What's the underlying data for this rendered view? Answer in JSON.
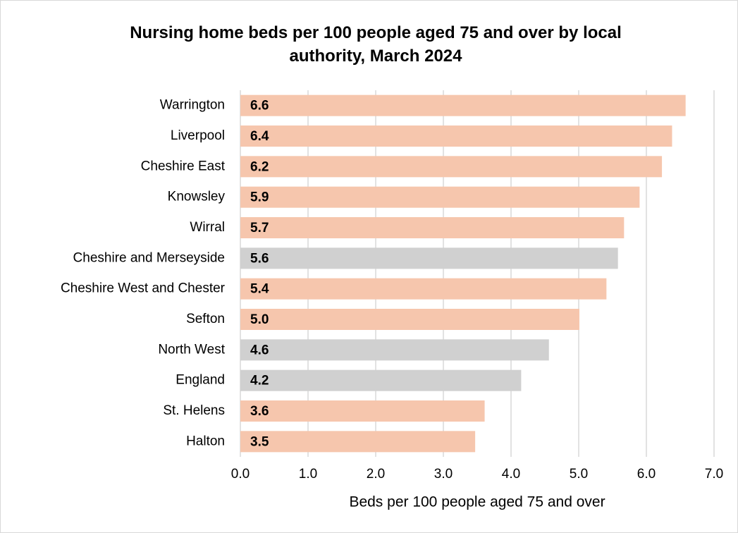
{
  "chart_data": {
    "type": "barh",
    "title": "Nursing home beds per 100 people aged 75 and over by local authority, March 2024",
    "xlabel": "Beds per 100 people aged 75 and over",
    "categories": [
      "Warrington",
      "Liverpool",
      "Cheshire East",
      "Knowsley",
      "Wirral",
      "Cheshire and Merseyside",
      "Cheshire West and Chester",
      "Sefton",
      "North West",
      "England",
      "St. Helens",
      "Halton"
    ],
    "values": [
      6.58,
      6.38,
      6.23,
      5.9,
      5.67,
      5.58,
      5.41,
      5.01,
      4.56,
      4.15,
      3.61,
      3.47
    ],
    "value_labels": [
      "6.6",
      "6.4",
      "6.2",
      "5.9",
      "5.7",
      "5.6",
      "5.4",
      "5.0",
      "4.6",
      "4.2",
      "3.6",
      "3.5"
    ],
    "colors": [
      "#f6c6ad",
      "#f6c6ad",
      "#f6c6ad",
      "#f6c6ad",
      "#f6c6ad",
      "#d0d0d0",
      "#f6c6ad",
      "#f6c6ad",
      "#d0d0d0",
      "#d0d0d0",
      "#f6c6ad",
      "#f6c6ad"
    ],
    "xlim": [
      0,
      7
    ],
    "xticks": [
      {
        "value": 0,
        "label": "0.0"
      },
      {
        "value": 1,
        "label": "1.0"
      },
      {
        "value": 2,
        "label": "2.0"
      },
      {
        "value": 3,
        "label": "3.0"
      },
      {
        "value": 4,
        "label": "4.0"
      },
      {
        "value": 5,
        "label": "5.0"
      },
      {
        "value": 6,
        "label": "6.0"
      },
      {
        "value": 7,
        "label": "7.0"
      }
    ],
    "grid": true
  }
}
